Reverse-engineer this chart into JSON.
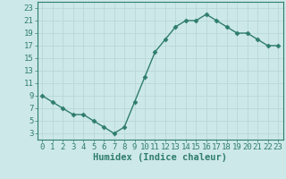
{
  "x": [
    0,
    1,
    2,
    3,
    4,
    5,
    6,
    7,
    8,
    9,
    10,
    11,
    12,
    13,
    14,
    15,
    16,
    17,
    18,
    19,
    20,
    21,
    22,
    23
  ],
  "y": [
    9,
    8,
    7,
    6,
    6,
    5,
    4,
    3,
    4,
    8,
    12,
    16,
    18,
    20,
    21,
    21,
    22,
    21,
    20,
    19,
    19,
    18,
    17,
    17
  ],
  "line_color": "#2e7d6e",
  "marker": "D",
  "marker_size": 2.5,
  "line_width": 1.0,
  "background_color": "#cde8e8",
  "grid_color": "#b8d8d8",
  "xlabel": "Humidex (Indice chaleur)",
  "xlabel_fontsize": 7.5,
  "xlabel_fontfamily": "monospace",
  "xlim": [
    -0.5,
    23.5
  ],
  "ylim": [
    2,
    24
  ],
  "yticks": [
    3,
    5,
    7,
    9,
    11,
    13,
    15,
    17,
    19,
    21,
    23
  ],
  "xticks": [
    0,
    1,
    2,
    3,
    4,
    5,
    6,
    7,
    8,
    9,
    10,
    11,
    12,
    13,
    14,
    15,
    16,
    17,
    18,
    19,
    20,
    21,
    22,
    23
  ],
  "tick_fontsize": 6.5,
  "tick_fontfamily": "monospace",
  "tick_color": "#2e7d6e",
  "spine_color": "#2e7d6e",
  "label_color": "#2e7d6e"
}
